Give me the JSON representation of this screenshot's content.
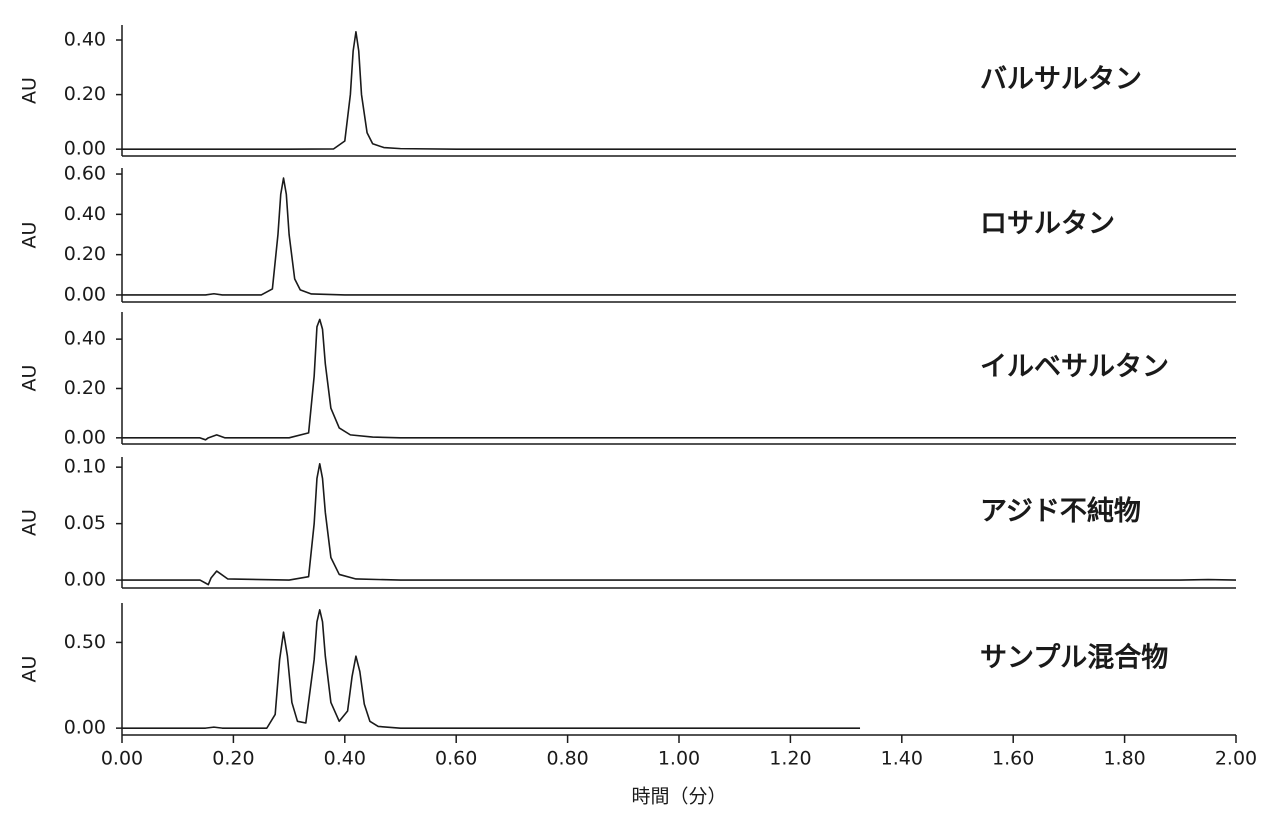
{
  "chart_data": [
    {
      "type": "line",
      "annotation": "バルサルタン",
      "ylabel": "AU",
      "color": "#1a1a1a",
      "xlim": [
        0,
        2.0
      ],
      "ylim": [
        -0.025,
        0.455
      ],
      "yticks": [
        {
          "value": 0,
          "label": "0.00"
        },
        {
          "value": 0.2,
          "label": "0.20"
        },
        {
          "value": 0.4,
          "label": "0.40"
        }
      ],
      "x": [
        0,
        0.1,
        0.2,
        0.3,
        0.38,
        0.4,
        0.41,
        0.415,
        0.42,
        0.425,
        0.43,
        0.44,
        0.45,
        0.47,
        0.5,
        0.6,
        1.0,
        1.5,
        2.0
      ],
      "values": [
        0,
        0,
        0,
        0,
        0.001,
        0.03,
        0.2,
        0.36,
        0.43,
        0.36,
        0.2,
        0.06,
        0.02,
        0.006,
        0.002,
        0,
        0,
        0,
        0
      ]
    },
    {
      "type": "line",
      "annotation": "ロサルタン",
      "ylabel": "AU",
      "color": "#1a1a1a",
      "xlim": [
        0,
        2.0
      ],
      "ylim": [
        -0.035,
        0.63
      ],
      "yticks": [
        {
          "value": 0,
          "label": "0.00"
        },
        {
          "value": 0.2,
          "label": "0.20"
        },
        {
          "value": 0.4,
          "label": "0.40"
        },
        {
          "value": 0.6,
          "label": "0.60"
        }
      ],
      "x": [
        0,
        0.15,
        0.165,
        0.18,
        0.25,
        0.27,
        0.28,
        0.285,
        0.29,
        0.295,
        0.3,
        0.31,
        0.32,
        0.34,
        0.4,
        1.0,
        2.0
      ],
      "values": [
        0,
        0,
        0.006,
        0,
        0,
        0.03,
        0.3,
        0.5,
        0.58,
        0.5,
        0.3,
        0.08,
        0.025,
        0.005,
        0,
        0,
        0
      ]
    },
    {
      "type": "line",
      "annotation": "イルベサルタン",
      "ylabel": "AU",
      "color": "#1a1a1a",
      "xlim": [
        0,
        2.0
      ],
      "ylim": [
        -0.025,
        0.51
      ],
      "yticks": [
        {
          "value": 0,
          "label": "0.00"
        },
        {
          "value": 0.2,
          "label": "0.20"
        },
        {
          "value": 0.4,
          "label": "0.40"
        }
      ],
      "x": [
        0,
        0.14,
        0.15,
        0.155,
        0.17,
        0.185,
        0.3,
        0.335,
        0.345,
        0.35,
        0.355,
        0.36,
        0.365,
        0.375,
        0.39,
        0.41,
        0.45,
        0.5,
        1.0,
        2.0
      ],
      "values": [
        0,
        0,
        -0.008,
        0,
        0.012,
        0,
        0,
        0.02,
        0.25,
        0.45,
        0.48,
        0.44,
        0.3,
        0.12,
        0.04,
        0.012,
        0.003,
        0,
        0,
        0
      ]
    },
    {
      "type": "line",
      "annotation": "アジド不純物",
      "ylabel": "AU",
      "color": "#1a1a1a",
      "xlim": [
        0,
        2.0
      ],
      "ylim": [
        -0.007,
        0.109
      ],
      "yticks": [
        {
          "value": 0,
          "label": "0.00"
        },
        {
          "value": 0.05,
          "label": "0.05"
        },
        {
          "value": 0.1,
          "label": "0.10"
        }
      ],
      "x": [
        0,
        0.14,
        0.155,
        0.16,
        0.17,
        0.19,
        0.3,
        0.335,
        0.345,
        0.35,
        0.355,
        0.36,
        0.365,
        0.375,
        0.39,
        0.42,
        0.5,
        1.0,
        1.9,
        1.95,
        2.0
      ],
      "values": [
        0,
        0,
        -0.004,
        0.002,
        0.008,
        0.001,
        0,
        0.003,
        0.05,
        0.09,
        0.103,
        0.09,
        0.06,
        0.02,
        0.005,
        0.001,
        0,
        0,
        0,
        0.0005,
        0
      ]
    },
    {
      "type": "line",
      "annotation": "サンプル混合物",
      "ylabel": "AU",
      "color": "#1a1a1a",
      "xlabel": "時間（分）",
      "xlim": [
        0,
        2.0
      ],
      "ylim": [
        -0.04,
        0.73
      ],
      "xticks": [
        {
          "value": 0,
          "label": "0.00"
        },
        {
          "value": 0.2,
          "label": "0.20"
        },
        {
          "value": 0.4,
          "label": "0.40"
        },
        {
          "value": 0.6,
          "label": "0.60"
        },
        {
          "value": 0.8,
          "label": "0.80"
        },
        {
          "value": 1.0,
          "label": "1.00"
        },
        {
          "value": 1.2,
          "label": "1.20"
        },
        {
          "value": 1.4,
          "label": "1.40"
        },
        {
          "value": 1.6,
          "label": "1.60"
        },
        {
          "value": 1.8,
          "label": "1.80"
        },
        {
          "value": 2.0,
          "label": "2.00"
        }
      ],
      "yticks": [
        {
          "value": 0,
          "label": "0.00"
        },
        {
          "value": 0.5,
          "label": "0.50"
        }
      ],
      "x": [
        0,
        0.15,
        0.165,
        0.18,
        0.26,
        0.275,
        0.283,
        0.29,
        0.297,
        0.305,
        0.315,
        0.33,
        0.345,
        0.35,
        0.355,
        0.36,
        0.365,
        0.375,
        0.39,
        0.405,
        0.413,
        0.42,
        0.427,
        0.435,
        0.445,
        0.46,
        0.5,
        1.0,
        1.325
      ],
      "values": [
        0,
        0,
        0.006,
        0,
        0,
        0.08,
        0.4,
        0.56,
        0.42,
        0.15,
        0.04,
        0.03,
        0.4,
        0.62,
        0.69,
        0.62,
        0.42,
        0.15,
        0.04,
        0.1,
        0.3,
        0.42,
        0.33,
        0.14,
        0.04,
        0.01,
        0,
        0,
        0
      ]
    }
  ]
}
